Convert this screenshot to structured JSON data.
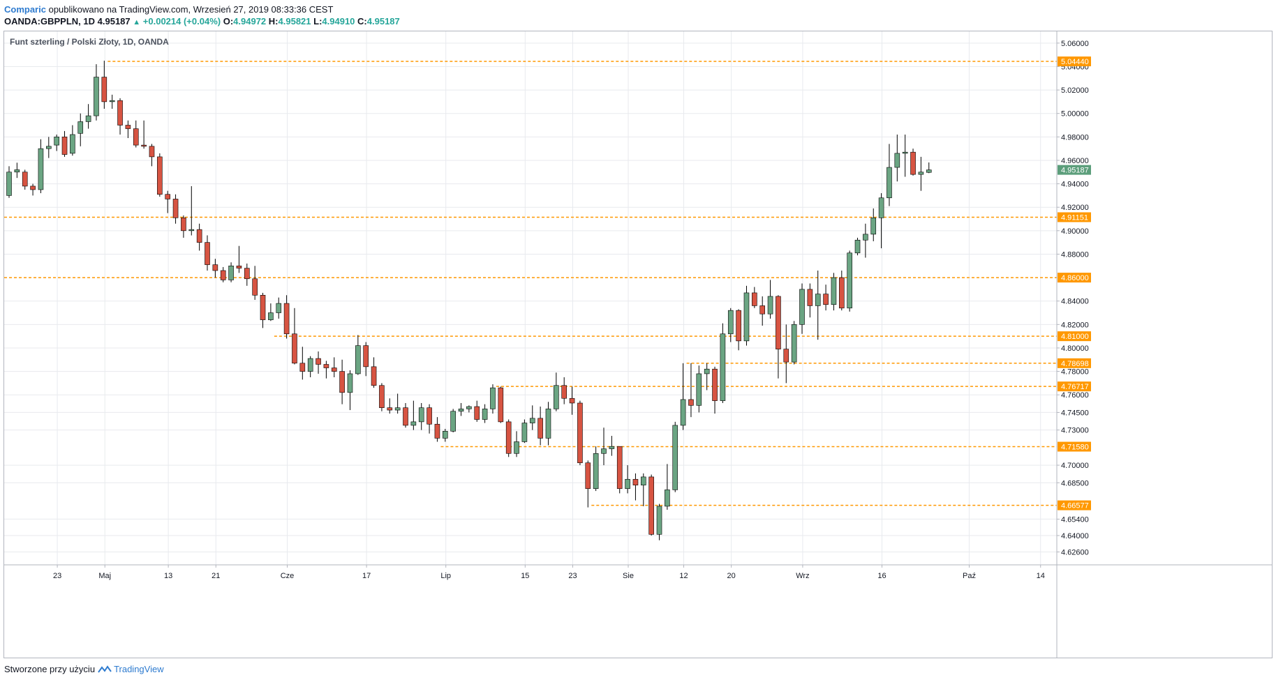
{
  "header": {
    "brand": "Comparic",
    "published_text": "opublikowano na TradingView.com, Wrzesień 27, 2019 08:33:36 CEST"
  },
  "quote": {
    "symbol": "OANDA:GBPPLN, 1D",
    "last": "4.95187",
    "change": "+0.00214 (+0.04%)",
    "o_label": "O:",
    "o": "4.94972",
    "h_label": "H:",
    "h": "4.95821",
    "l_label": "L:",
    "l": "4.94910",
    "c_label": "C:",
    "c": "4.95187"
  },
  "footer": {
    "text": "Stworzone przy użyciu",
    "brand": "TradingView"
  },
  "colors": {
    "up": "#6ba583",
    "down": "#d75442",
    "wick": "#000000",
    "level": "#ff9800",
    "last_price_bg": "#5c9e7b",
    "grid": "#e8eaee"
  },
  "chart_data": {
    "type": "candlestick",
    "title": "Funt szterling / Polski Złoty, 1D, OANDA",
    "ylim": [
      4.615,
      5.07
    ],
    "y_ticks": [
      "4.62600",
      "4.64000",
      "4.65400",
      "4.66577",
      "4.68500",
      "4.70000",
      "4.71580",
      "4.73000",
      "4.74500",
      "4.76000",
      "4.76717",
      "4.78000",
      "4.78698",
      "4.80000",
      "4.81000",
      "4.82000",
      "4.84000",
      "4.86000",
      "4.88000",
      "4.90000",
      "4.91151",
      "4.92000",
      "4.94000",
      "4.95187",
      "4.96000",
      "4.98000",
      "5.00000",
      "5.02000",
      "5.04000",
      "5.04440",
      "5.06000"
    ],
    "x_labels": [
      {
        "label": "23",
        "index": 3
      },
      {
        "label": "Maj",
        "index": 9
      },
      {
        "label": "13",
        "index": 17
      },
      {
        "label": "21",
        "index": 23
      },
      {
        "label": "Cze",
        "index": 32
      },
      {
        "label": "17",
        "index": 42
      },
      {
        "label": "Lip",
        "index": 52
      },
      {
        "label": "15",
        "index": 62
      },
      {
        "label": "23",
        "index": 68
      },
      {
        "label": "Sie",
        "index": 75
      },
      {
        "label": "12",
        "index": 82
      },
      {
        "label": "20",
        "index": 88
      },
      {
        "label": "Wrz",
        "index": 97
      },
      {
        "label": "16",
        "index": 107
      },
      {
        "label": "Paź",
        "index": 118
      },
      {
        "label": "14",
        "index": 127
      }
    ],
    "levels": [
      {
        "value": 5.0444,
        "label": "5.04440",
        "from_index": 12
      },
      {
        "value": 4.91151,
        "label": "4.91151",
        "from_index": 0
      },
      {
        "value": 4.86,
        "label": "4.86000",
        "from_index": 0
      },
      {
        "value": 4.81,
        "label": "4.81000",
        "from_index": 33
      },
      {
        "value": 4.78698,
        "label": "4.78698",
        "from_index": 85
      },
      {
        "value": 4.76717,
        "label": "4.76717",
        "from_index": 61
      },
      {
        "value": 4.7158,
        "label": "4.71580",
        "from_index": 54
      },
      {
        "value": 4.66577,
        "label": "4.66577",
        "from_index": 73
      }
    ],
    "last_price": {
      "value": 4.95187,
      "label": "4.95187"
    },
    "candles": [
      [
        4.93,
        4.95,
        4.955,
        4.928
      ],
      [
        4.95,
        4.952,
        4.958,
        4.945
      ],
      [
        4.95,
        4.938,
        4.952,
        4.935
      ],
      [
        4.938,
        4.935,
        4.94,
        4.93
      ],
      [
        4.935,
        4.97,
        4.978,
        4.932
      ],
      [
        4.97,
        4.972,
        4.98,
        4.962
      ],
      [
        4.973,
        4.98,
        4.982,
        4.968
      ],
      [
        4.98,
        4.965,
        4.985,
        4.963
      ],
      [
        4.966,
        4.982,
        4.99,
        4.964
      ],
      [
        4.983,
        4.993,
        5.0,
        4.972
      ],
      [
        4.993,
        4.998,
        5.008,
        4.987
      ],
      [
        4.998,
        5.031,
        5.042,
        4.994
      ],
      [
        5.031,
        5.01,
        5.045,
        5.004
      ],
      [
        5.01,
        5.011,
        5.016,
        5.004
      ],
      [
        5.011,
        4.99,
        5.013,
        4.982
      ],
      [
        4.99,
        4.987,
        4.994,
        4.979
      ],
      [
        4.987,
        4.973,
        4.994,
        4.971
      ],
      [
        4.973,
        4.972,
        4.994,
        4.97
      ],
      [
        4.972,
        4.963,
        4.974,
        4.955
      ],
      [
        4.963,
        4.931,
        4.966,
        4.929
      ],
      [
        4.931,
        4.927,
        4.934,
        4.915
      ],
      [
        4.927,
        4.911,
        4.931,
        4.906
      ],
      [
        4.911,
        4.9,
        4.913,
        4.894
      ],
      [
        4.9,
        4.901,
        4.938,
        4.896
      ],
      [
        4.901,
        4.89,
        4.906,
        4.883
      ],
      [
        4.89,
        4.871,
        4.896,
        4.866
      ],
      [
        4.871,
        4.866,
        4.876,
        4.86
      ],
      [
        4.866,
        4.858,
        4.869,
        4.856
      ],
      [
        4.858,
        4.87,
        4.873,
        4.856
      ],
      [
        4.87,
        4.868,
        4.887,
        4.864
      ],
      [
        4.868,
        4.859,
        4.872,
        4.853
      ],
      [
        4.859,
        4.845,
        4.87,
        4.841
      ],
      [
        4.845,
        4.824,
        4.847,
        4.817
      ],
      [
        4.824,
        4.83,
        4.838,
        4.823
      ],
      [
        4.83,
        4.838,
        4.843,
        4.825
      ],
      [
        4.838,
        4.812,
        4.845,
        4.808
      ],
      [
        4.812,
        4.787,
        4.834,
        4.786
      ],
      [
        4.787,
        4.78,
        4.801,
        4.773
      ],
      [
        4.78,
        4.791,
        4.793,
        4.775
      ],
      [
        4.791,
        4.786,
        4.797,
        4.778
      ],
      [
        4.786,
        4.783,
        4.789,
        4.774
      ],
      [
        4.783,
        4.78,
        4.792,
        4.775
      ],
      [
        4.78,
        4.762,
        4.79,
        4.752
      ],
      [
        4.762,
        4.778,
        4.781,
        4.747
      ],
      [
        4.778,
        4.802,
        4.811,
        4.777
      ],
      [
        4.802,
        4.784,
        4.805,
        4.776
      ],
      [
        4.784,
        4.768,
        4.792,
        4.766
      ],
      [
        4.768,
        4.749,
        4.77,
        4.746
      ],
      [
        4.749,
        4.747,
        4.757,
        4.744
      ],
      [
        4.747,
        4.749,
        4.761,
        4.744
      ],
      [
        4.749,
        4.734,
        4.753,
        4.732
      ],
      [
        4.734,
        4.737,
        4.755,
        4.73
      ],
      [
        4.737,
        4.749,
        4.753,
        4.73
      ],
      [
        4.749,
        4.735,
        4.752,
        4.727
      ],
      [
        4.735,
        4.723,
        4.741,
        4.72
      ],
      [
        4.723,
        4.729,
        4.731,
        4.72
      ],
      [
        4.729,
        4.746,
        4.748,
        4.728
      ],
      [
        4.746,
        4.748,
        4.753,
        4.742
      ],
      [
        4.748,
        4.75,
        4.751,
        4.745
      ],
      [
        4.75,
        4.739,
        4.755,
        4.737
      ],
      [
        4.739,
        4.748,
        4.752,
        4.736
      ],
      [
        4.748,
        4.766,
        4.769,
        4.744
      ],
      [
        4.766,
        4.737,
        4.767,
        4.736
      ],
      [
        4.737,
        4.71,
        4.739,
        4.707
      ],
      [
        4.71,
        4.72,
        4.729,
        4.707
      ],
      [
        4.72,
        4.736,
        4.739,
        4.719
      ],
      [
        4.736,
        4.74,
        4.751,
        4.73
      ],
      [
        4.74,
        4.723,
        4.75,
        4.717
      ],
      [
        4.723,
        4.748,
        4.754,
        4.717
      ],
      [
        4.748,
        4.768,
        4.779,
        4.746
      ],
      [
        4.768,
        4.757,
        4.775,
        4.752
      ],
      [
        4.757,
        4.753,
        4.767,
        4.743
      ],
      [
        4.753,
        4.702,
        4.755,
        4.7
      ],
      [
        4.702,
        4.68,
        4.704,
        4.664
      ],
      [
        4.68,
        4.71,
        4.716,
        4.678
      ],
      [
        4.71,
        4.714,
        4.732,
        4.7
      ],
      [
        4.714,
        4.716,
        4.725,
        4.708
      ],
      [
        4.716,
        4.68,
        4.716,
        4.676
      ],
      [
        4.68,
        4.688,
        4.7,
        4.676
      ],
      [
        4.688,
        4.683,
        4.693,
        4.67
      ],
      [
        4.683,
        4.69,
        4.693,
        4.665
      ],
      [
        4.69,
        4.641,
        4.692,
        4.64
      ],
      [
        4.641,
        4.665,
        4.667,
        4.636
      ],
      [
        4.665,
        4.679,
        4.701,
        4.662
      ],
      [
        4.679,
        4.734,
        4.737,
        4.677
      ],
      [
        4.734,
        4.756,
        4.787,
        4.73
      ],
      [
        4.756,
        4.751,
        4.787,
        4.741
      ],
      [
        4.751,
        4.778,
        4.785,
        4.745
      ],
      [
        4.778,
        4.782,
        4.787,
        4.764
      ],
      [
        4.782,
        4.755,
        4.784,
        4.744
      ],
      [
        4.755,
        4.812,
        4.821,
        4.753
      ],
      [
        4.812,
        4.832,
        4.834,
        4.805
      ],
      [
        4.832,
        4.806,
        4.833,
        4.798
      ],
      [
        4.806,
        4.847,
        4.853,
        4.802
      ],
      [
        4.847,
        4.836,
        4.852,
        4.834
      ],
      [
        4.836,
        4.829,
        4.844,
        4.819
      ],
      [
        4.829,
        4.844,
        4.858,
        4.825
      ],
      [
        4.844,
        4.799,
        4.845,
        4.774
      ],
      [
        4.799,
        4.788,
        4.82,
        4.77
      ],
      [
        4.788,
        4.82,
        4.823,
        4.786
      ],
      [
        4.82,
        4.85,
        4.855,
        4.812
      ],
      [
        4.85,
        4.836,
        4.855,
        4.826
      ],
      [
        4.836,
        4.846,
        4.866,
        4.807
      ],
      [
        4.846,
        4.837,
        4.854,
        4.832
      ],
      [
        4.837,
        4.86,
        4.864,
        4.832
      ],
      [
        4.86,
        4.834,
        4.866,
        4.832
      ],
      [
        4.834,
        4.881,
        4.883,
        4.831
      ],
      [
        4.881,
        4.892,
        4.894,
        4.879
      ],
      [
        4.892,
        4.897,
        4.906,
        4.877
      ],
      [
        4.897,
        4.911,
        4.919,
        4.891
      ],
      [
        4.911,
        4.928,
        4.932,
        4.885
      ],
      [
        4.928,
        4.954,
        4.974,
        4.921
      ],
      [
        4.954,
        4.966,
        4.982,
        4.942
      ],
      [
        4.966,
        4.967,
        4.982,
        4.946
      ],
      [
        4.967,
        4.948,
        4.97,
        4.947
      ],
      [
        4.948,
        4.95,
        4.963,
        4.934
      ],
      [
        4.94972,
        4.95187,
        4.95821,
        4.9491
      ]
    ]
  }
}
